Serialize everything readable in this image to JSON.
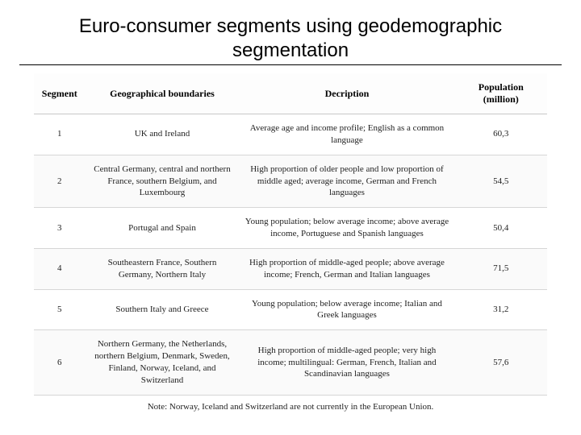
{
  "title": "Euro-consumer segments using geodemographic segmentation",
  "table": {
    "columns": {
      "segment": "Segment",
      "geo": "Geographical boundaries",
      "desc": "Decription",
      "pop": "Population (million)"
    },
    "rows": [
      {
        "segment": "1",
        "geo": "UK and Ireland",
        "desc": "Average age and income profile; English as a common language",
        "pop": "60,3"
      },
      {
        "segment": "2",
        "geo": "Central Germany, central and northern France, southern Belgium, and Luxembourg",
        "desc": "High proportion of older people and low proportion of middle aged; average income, German and French languages",
        "pop": "54,5"
      },
      {
        "segment": "3",
        "geo": "Portugal and Spain",
        "desc": "Young population; below average income; above average income, Portuguese and Spanish languages",
        "pop": "50,4"
      },
      {
        "segment": "4",
        "geo": "Southeastern France, Southern Germany, Northern Italy",
        "desc": "High proportion of middle-aged people; above average income; French, German and Italian languages",
        "pop": "71,5"
      },
      {
        "segment": "5",
        "geo": "Southern Italy and Greece",
        "desc": "Young population; below average income; Italian and Greek languages",
        "pop": "31,2"
      },
      {
        "segment": "6",
        "geo": "Northern Germany, the Netherlands, northern Belgium, Denmark, Sweden, Finland, Norway, Iceland, and Switzerland",
        "desc": "High proportion of middle-aged people; very high income; multilingual: German, French, Italian and Scandinavian languages",
        "pop": "57,6"
      }
    ],
    "note": "Note: Norway, Iceland and Switzerland are not currently in the European Union."
  },
  "styling": {
    "background_color": "#ffffff",
    "title_color": "#000000",
    "title_fontsize": 24,
    "header_fontsize": 12,
    "cell_fontsize": 11,
    "border_color": "#d6d6d6",
    "alt_row_bg": "#fafafa",
    "font_family_title": "Arial",
    "font_family_table": "Times New Roman",
    "col_widths": [
      "10%",
      "30%",
      "42%",
      "18%"
    ]
  }
}
